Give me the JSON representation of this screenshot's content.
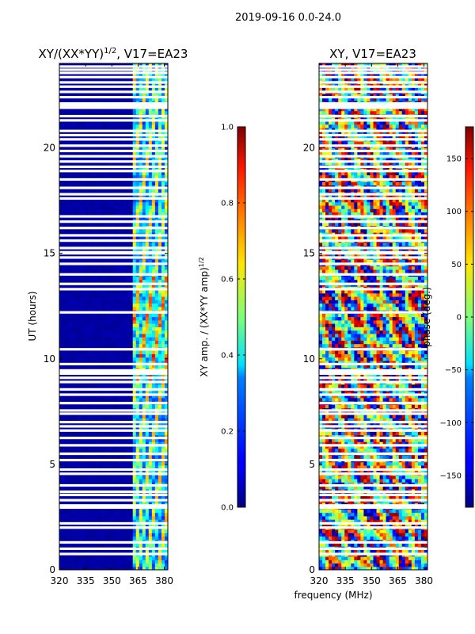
{
  "figure": {
    "suptitle": "2019-09-16 0.0-24.0",
    "shared_xlabel": "frequency (MHz)"
  },
  "chart_data": [
    {
      "type": "heatmap",
      "id": "amp",
      "title_main": "XY/(XX*YY)",
      "title_exp": "1/2",
      "title_tail": ", V17=EA23",
      "ylabel": "UT (hours)",
      "xlim": [
        320,
        382
      ],
      "ylim": [
        0,
        24
      ],
      "xticks": [
        320,
        335,
        350,
        365,
        380
      ],
      "yticks": [
        0,
        5,
        10,
        15,
        20
      ],
      "colorbar": {
        "label_main": "XY amp. / (XX*YY amp)",
        "label_exp": "1/2",
        "range": [
          0.0,
          1.0
        ],
        "ticks": [
          "0.0",
          "0.2",
          "0.4",
          "0.6",
          "0.8",
          "1.0"
        ],
        "tick_values": [
          0.0,
          0.2,
          0.4,
          0.6,
          0.8,
          1.0
        ],
        "colormap": "jet"
      },
      "description_values": {
        "background_level": 0.02,
        "signal_band_mhz": [
          362,
          382
        ],
        "signal_level_range": [
          0.2,
          0.75
        ]
      }
    },
    {
      "type": "heatmap",
      "id": "phase",
      "title_main": "XY, V17=EA23",
      "ylabel": "",
      "xlim": [
        320,
        382
      ],
      "ylim": [
        0,
        24
      ],
      "xticks": [
        320,
        335,
        350,
        365,
        380
      ],
      "yticks": [
        0,
        5,
        10,
        15,
        20
      ],
      "colorbar": {
        "label_main": "phase (deg.)",
        "range": [
          -180,
          180
        ],
        "ticks": [
          "−150",
          "−100",
          "−50",
          "0",
          "50",
          "100",
          "150"
        ],
        "tick_values": [
          -150,
          -100,
          -50,
          0,
          50,
          100,
          150
        ],
        "colormap": "jet"
      }
    }
  ],
  "flagged_hours": [
    0.75,
    1.0,
    1.3,
    2.0,
    2.2,
    2.95,
    3.05,
    3.3,
    3.55,
    3.7,
    4.0,
    4.55,
    4.75,
    5.2,
    5.5,
    5.9,
    6.25,
    6.6,
    6.8,
    7.0,
    7.4,
    7.55,
    7.9,
    8.3,
    8.55,
    8.9,
    9.1,
    9.3,
    9.35,
    9.45,
    9.75,
    10.45,
    12.2,
    13.3,
    13.55,
    14.0,
    14.5,
    14.8,
    15.0,
    15.05,
    15.25,
    15.6,
    15.85,
    16.2,
    16.5,
    16.75,
    17.6,
    17.8,
    18.1,
    18.5,
    18.9,
    19.1,
    19.35,
    19.6,
    19.85,
    20.1,
    20.4,
    20.6,
    20.8,
    21.3,
    21.5,
    21.9,
    22.0,
    22.1,
    22.4,
    22.65,
    22.9,
    23.1,
    23.35,
    23.55,
    23.7,
    23.85
  ]
}
